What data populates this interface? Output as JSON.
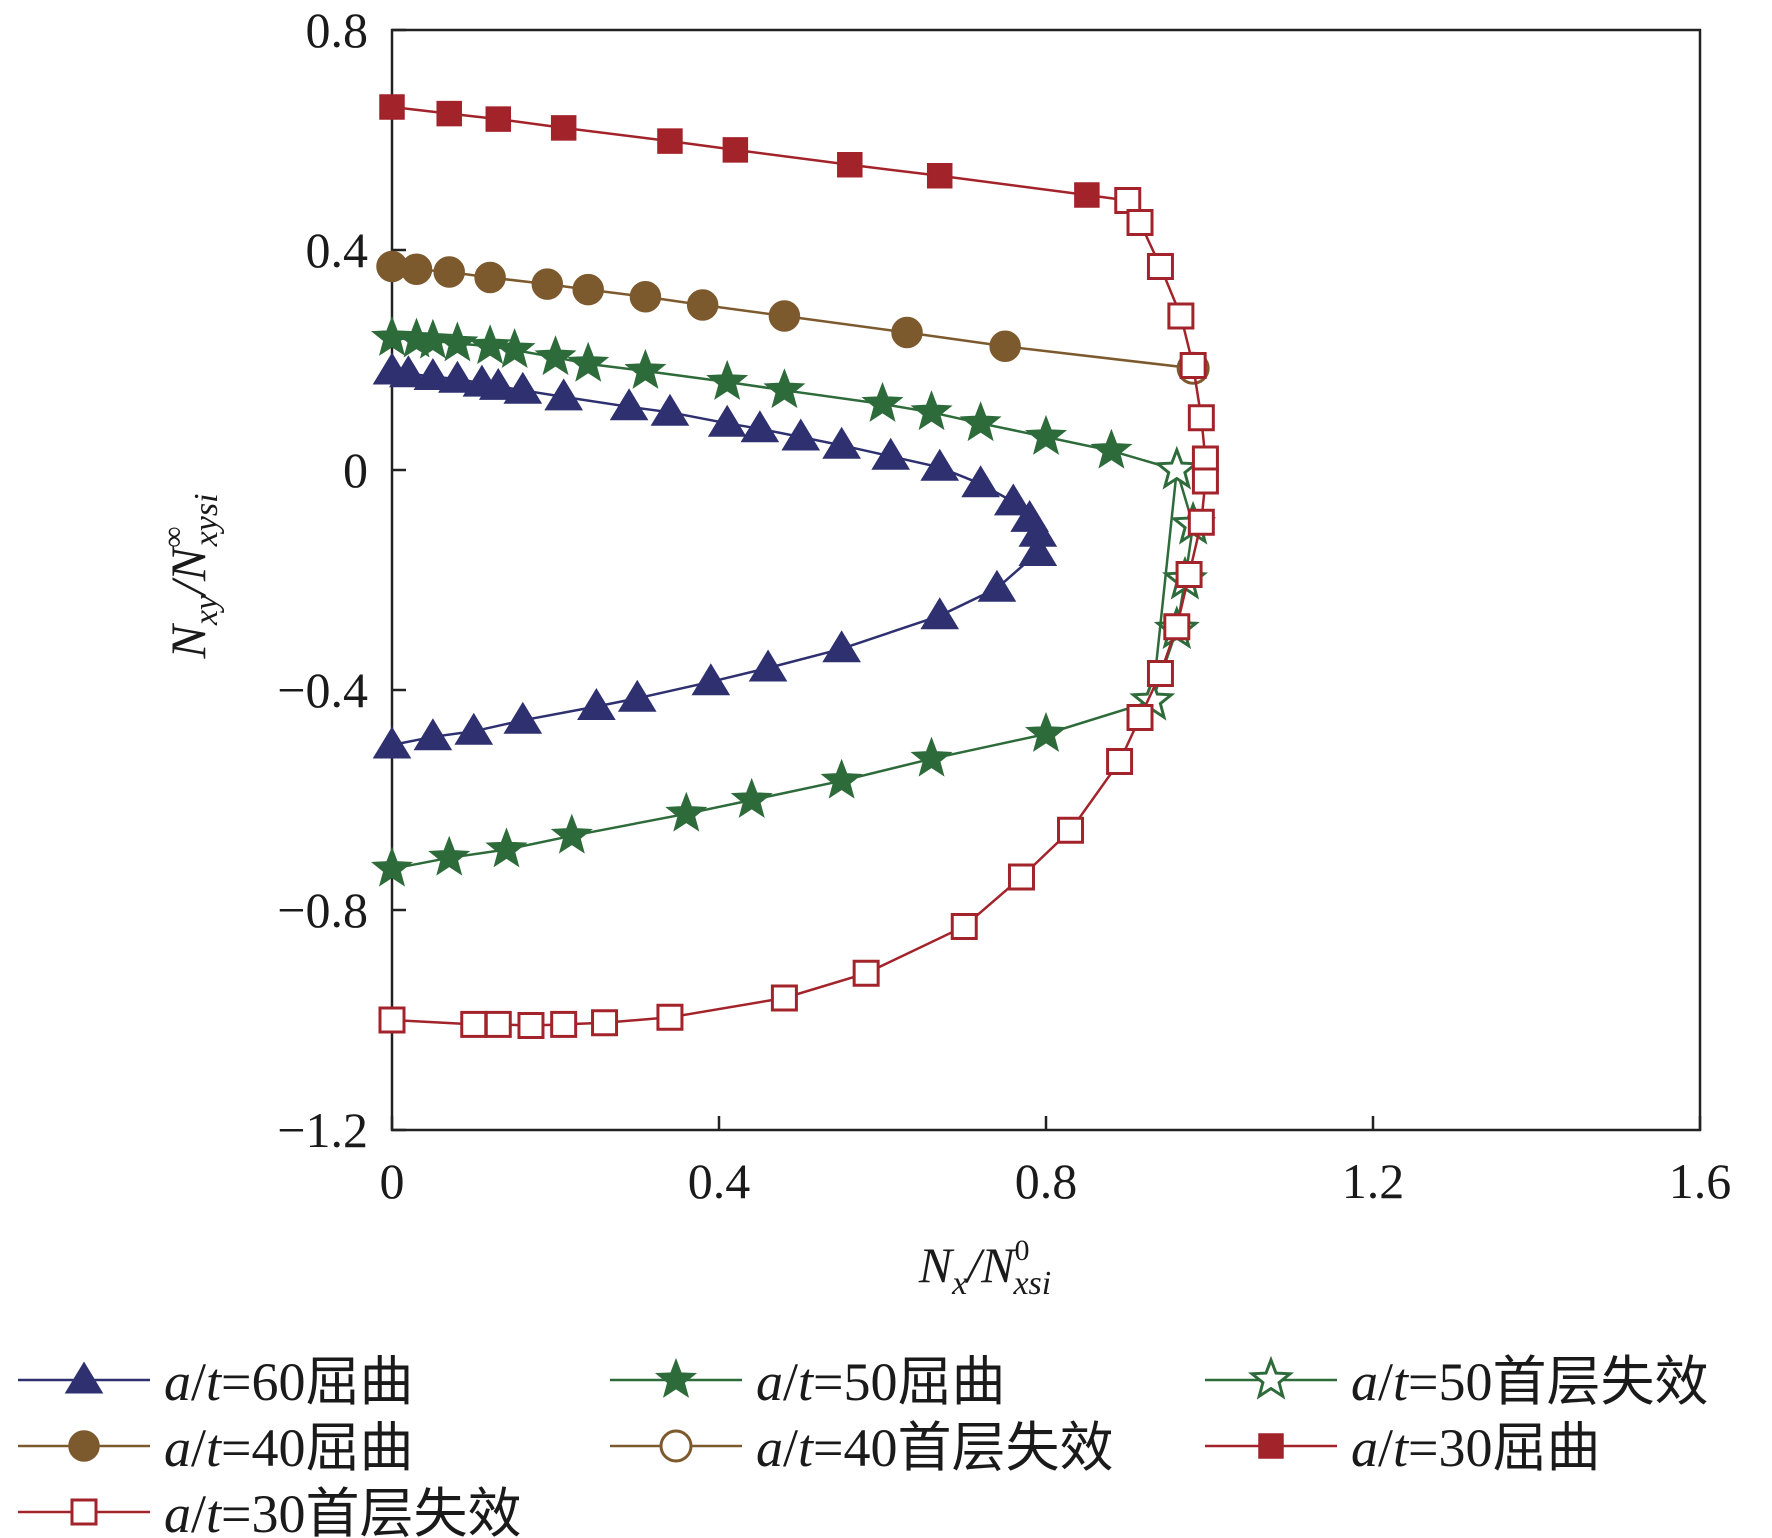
{
  "chart_data": {
    "type": "line",
    "xlabel": {
      "main": "N",
      "sub": "x",
      "sep": "/N",
      "sup": "0",
      "sub2": "xsi"
    },
    "ylabel": {
      "main": "N",
      "sub": "xy",
      "sep": "/N",
      "sup": "∞",
      "sub2": "xysi"
    },
    "xlim": [
      0,
      1.6
    ],
    "ylim": [
      -1.2,
      0.8
    ],
    "xticks": [
      {
        "v": 0,
        "label": "0"
      },
      {
        "v": 0.4,
        "label": "0.4"
      },
      {
        "v": 0.8,
        "label": "0.8"
      },
      {
        "v": 1.2,
        "label": "1.2"
      },
      {
        "v": 1.6,
        "label": "1.6"
      }
    ],
    "yticks": [
      {
        "v": 0.8,
        "label": "0.8"
      },
      {
        "v": 0.4,
        "label": "0.4"
      },
      {
        "v": 0,
        "label": "0"
      },
      {
        "v": -0.4,
        "label": "−0.4"
      },
      {
        "v": -0.8,
        "label": "−0.8"
      },
      {
        "v": -1.2,
        "label": "−1.2"
      }
    ],
    "grid": false,
    "series": [
      {
        "name": "a/t=60屈曲",
        "legend": {
          "italic1": "a",
          "slash": "/",
          "italic2": "t",
          "rest": "=60屈曲"
        },
        "color": "#2e3070",
        "marker": "triangle",
        "filled": true,
        "x": [
          0,
          0.02,
          0.05,
          0.08,
          0.11,
          0.13,
          0.16,
          0.21,
          0.29,
          0.34,
          0.41,
          0.45,
          0.5,
          0.55,
          0.61,
          0.67,
          0.72,
          0.76,
          0.78,
          0.79,
          0.79,
          0.74,
          0.67,
          0.55,
          0.46,
          0.39,
          0.3,
          0.25,
          0.16,
          0.1,
          0.05,
          0
        ],
        "y": [
          0.18,
          0.175,
          0.17,
          0.165,
          0.158,
          0.152,
          0.145,
          0.133,
          0.115,
          0.105,
          0.085,
          0.075,
          0.06,
          0.045,
          0.025,
          0.005,
          -0.025,
          -0.058,
          -0.088,
          -0.115,
          -0.15,
          -0.215,
          -0.265,
          -0.325,
          -0.36,
          -0.385,
          -0.415,
          -0.43,
          -0.455,
          -0.475,
          -0.485,
          -0.5
        ]
      },
      {
        "name": "a/t=50屈曲",
        "legend": {
          "italic1": "a",
          "slash": "/",
          "italic2": "t",
          "rest": "=50屈曲"
        },
        "color": "#2e6b3a",
        "marker": "star",
        "filled": true,
        "x": [
          0,
          0.03,
          0.05,
          0.08,
          0.12,
          0.15,
          0.2,
          0.24,
          0.31,
          0.41,
          0.48,
          0.6,
          0.66,
          0.72,
          0.8,
          0.88,
          0.96,
          0.93,
          0.8,
          0.66,
          0.55,
          0.44,
          0.36,
          0.22,
          0.14,
          0.07,
          0
        ],
        "y": [
          0.24,
          0.237,
          0.235,
          0.23,
          0.225,
          0.218,
          0.205,
          0.193,
          0.18,
          0.16,
          0.145,
          0.12,
          0.105,
          0.085,
          0.06,
          0.035,
          0.0,
          -0.42,
          -0.48,
          -0.525,
          -0.565,
          -0.6,
          -0.625,
          -0.665,
          -0.69,
          -0.705,
          -0.725
        ]
      },
      {
        "name": "a/t=50首层失效",
        "legend": {
          "italic1": "a",
          "slash": "/",
          "italic2": "t",
          "rest": "=50首层失效"
        },
        "color": "#2e6b3a",
        "marker": "star",
        "filled": false,
        "x": [
          0.96,
          0.98,
          0.97,
          0.96,
          0.93
        ],
        "y": [
          0.0,
          -0.1,
          -0.2,
          -0.29,
          -0.42
        ]
      },
      {
        "name": "a/t=40屈曲",
        "legend": {
          "italic1": "a",
          "slash": "/",
          "italic2": "t",
          "rest": "=40屈曲"
        },
        "color": "#7d5a2e",
        "marker": "circle",
        "filled": true,
        "x": [
          0,
          0.03,
          0.07,
          0.12,
          0.19,
          0.24,
          0.31,
          0.38,
          0.48,
          0.63,
          0.75,
          0.98
        ],
        "y": [
          0.37,
          0.365,
          0.36,
          0.35,
          0.338,
          0.328,
          0.315,
          0.3,
          0.28,
          0.25,
          0.225,
          0.185
        ]
      },
      {
        "name": "a/t=40首层失效",
        "legend": {
          "italic1": "a",
          "slash": "/",
          "italic2": "t",
          "rest": "=40首层失效"
        },
        "color": "#7d5a2e",
        "marker": "circle",
        "filled": false,
        "x": [
          0.98
        ],
        "y": [
          0.185
        ]
      },
      {
        "name": "a/t=30屈曲",
        "legend": {
          "italic1": "a",
          "slash": "/",
          "italic2": "t",
          "rest": "=30屈曲"
        },
        "color": "#a3232b",
        "marker": "square",
        "filled": true,
        "x": [
          0,
          0.07,
          0.13,
          0.21,
          0.34,
          0.42,
          0.56,
          0.67,
          0.85,
          0.9
        ],
        "y": [
          0.66,
          0.648,
          0.638,
          0.622,
          0.598,
          0.582,
          0.555,
          0.535,
          0.5,
          0.49
        ]
      },
      {
        "name": "a/t=30首层失效",
        "legend": {
          "italic1": "a",
          "slash": "/",
          "italic2": "t",
          "rest": "=30首层失效"
        },
        "color": "#a3232b",
        "marker": "square",
        "filled": false,
        "x": [
          0.9,
          0.915,
          0.94,
          0.965,
          0.98,
          0.99,
          0.995,
          0.995,
          0.99,
          0.975,
          0.96,
          0.94,
          0.915,
          0.89,
          0.83,
          0.77,
          0.7,
          0.58,
          0.48,
          0.34,
          0.26,
          0.21,
          0.17,
          0.13,
          0.1,
          0
        ],
        "y": [
          0.49,
          0.45,
          0.37,
          0.28,
          0.19,
          0.095,
          0.02,
          -0.02,
          -0.095,
          -0.19,
          -0.285,
          -0.37,
          -0.45,
          -0.53,
          -0.655,
          -0.74,
          -0.83,
          -0.915,
          -0.96,
          -0.995,
          -1.005,
          -1.008,
          -1.01,
          -1.008,
          -1.008,
          -1.0
        ]
      }
    ]
  }
}
